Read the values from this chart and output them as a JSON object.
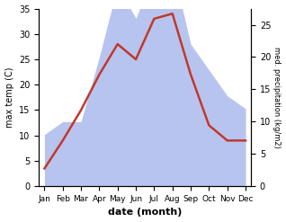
{
  "months": [
    "Jan",
    "Feb",
    "Mar",
    "Apr",
    "May",
    "Jun",
    "Jul",
    "Aug",
    "Sep",
    "Oct",
    "Nov",
    "Dec"
  ],
  "temperature": [
    3.5,
    9.0,
    15.0,
    22.0,
    28.0,
    25.0,
    33.0,
    34.0,
    22.0,
    12.0,
    9.0,
    9.0
  ],
  "precipitation": [
    8.0,
    10.0,
    10.0,
    20.0,
    31.0,
    26.0,
    33.0,
    34.0,
    22.0,
    18.0,
    14.0,
    12.0
  ],
  "temp_color": "#c0392b",
  "precip_color": "#b8c4f0",
  "temp_ylim": [
    0,
    35
  ],
  "precip_ylim": [
    0,
    27.5
  ],
  "temp_yticks": [
    0,
    5,
    10,
    15,
    20,
    25,
    30,
    35
  ],
  "precip_yticks": [
    0,
    5,
    10,
    15,
    20,
    25
  ],
  "xlabel": "date (month)",
  "ylabel_left": "max temp (C)",
  "ylabel_right": "med. precipitation (kg/m2)",
  "background_color": "#ffffff",
  "tick_fontsize": 7,
  "label_fontsize": 7,
  "xlabel_fontsize": 8
}
